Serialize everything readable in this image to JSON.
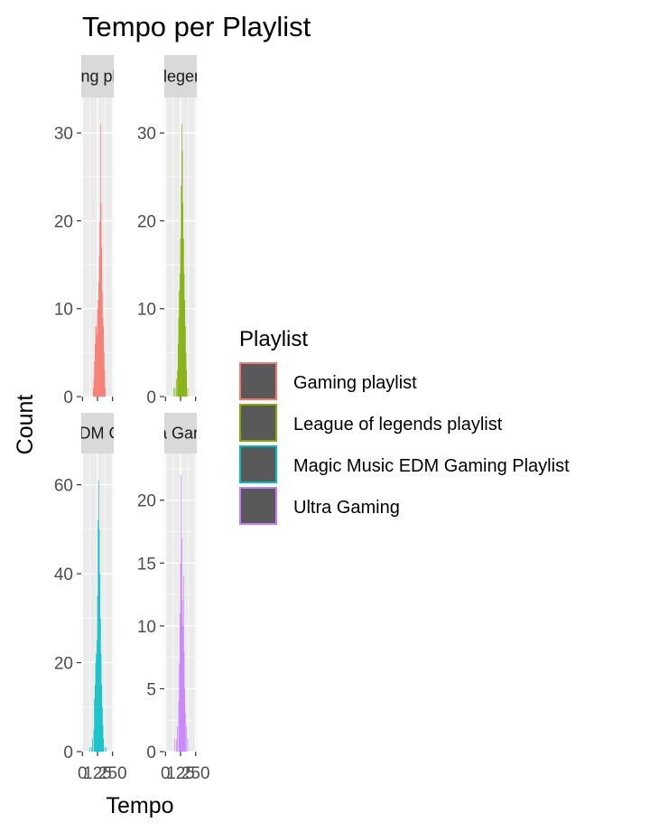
{
  "chart_data": {
    "type": "bar",
    "title": "Tempo per Playlist",
    "xlabel": "Tempo",
    "ylabel": "Count",
    "legend": {
      "title": "Playlist",
      "placement": "right",
      "entries": [
        {
          "label": "Gaming playlist",
          "color": "#F8766D"
        },
        {
          "label": "League of legends playlist",
          "color": "#7CAE00"
        },
        {
          "label": "Magic Music EDM Gaming Playlist",
          "color": "#00BFC4"
        },
        {
          "label": "Ultra Gaming",
          "color": "#C77CFF"
        }
      ]
    },
    "x_ticks": [
      "0",
      "125",
      "250"
    ],
    "xlim": [
      -10,
      260
    ],
    "grid": true,
    "facets": [
      {
        "strip_label": "Gaming playlist",
        "color": "#F8766D",
        "ylim": [
          0,
          33
        ],
        "y_ticks": [
          0,
          10,
          20,
          30
        ],
        "bins": [
          {
            "x": 90,
            "y": 1
          },
          {
            "x": 95,
            "y": 2
          },
          {
            "x": 100,
            "y": 4
          },
          {
            "x": 105,
            "y": 6
          },
          {
            "x": 110,
            "y": 8
          },
          {
            "x": 115,
            "y": 8
          },
          {
            "x": 120,
            "y": 7
          },
          {
            "x": 125,
            "y": 10
          },
          {
            "x": 130,
            "y": 11
          },
          {
            "x": 135,
            "y": 13
          },
          {
            "x": 140,
            "y": 16
          },
          {
            "x": 145,
            "y": 20
          },
          {
            "x": 150,
            "y": 31
          },
          {
            "x": 155,
            "y": 22
          },
          {
            "x": 160,
            "y": 17
          },
          {
            "x": 165,
            "y": 12
          },
          {
            "x": 170,
            "y": 9
          },
          {
            "x": 175,
            "y": 8
          },
          {
            "x": 180,
            "y": 5
          },
          {
            "x": 185,
            "y": 3
          },
          {
            "x": 190,
            "y": 1
          }
        ]
      },
      {
        "strip_label": "League of legends playlist",
        "color": "#7CAE00",
        "ylim": [
          0,
          33
        ],
        "y_ticks": [
          0,
          10,
          20,
          30
        ],
        "bins": [
          {
            "x": 70,
            "y": 1
          },
          {
            "x": 80,
            "y": 1
          },
          {
            "x": 90,
            "y": 2
          },
          {
            "x": 100,
            "y": 3
          },
          {
            "x": 105,
            "y": 6
          },
          {
            "x": 110,
            "y": 9
          },
          {
            "x": 115,
            "y": 12
          },
          {
            "x": 120,
            "y": 14
          },
          {
            "x": 125,
            "y": 18
          },
          {
            "x": 130,
            "y": 24
          },
          {
            "x": 135,
            "y": 31
          },
          {
            "x": 140,
            "y": 28
          },
          {
            "x": 145,
            "y": 22
          },
          {
            "x": 150,
            "y": 18
          },
          {
            "x": 155,
            "y": 14
          },
          {
            "x": 160,
            "y": 11
          },
          {
            "x": 165,
            "y": 8
          },
          {
            "x": 170,
            "y": 5
          },
          {
            "x": 175,
            "y": 3
          },
          {
            "x": 185,
            "y": 1
          }
        ]
      },
      {
        "strip_label": "Magic Music EDM Gaming Playlist",
        "color": "#00BFC4",
        "ylim": [
          0,
          65
        ],
        "y_ticks": [
          0,
          20,
          40,
          60
        ],
        "bins": [
          {
            "x": 60,
            "y": 1
          },
          {
            "x": 75,
            "y": 1
          },
          {
            "x": 85,
            "y": 3
          },
          {
            "x": 95,
            "y": 5
          },
          {
            "x": 100,
            "y": 12
          },
          {
            "x": 105,
            "y": 15
          },
          {
            "x": 110,
            "y": 20
          },
          {
            "x": 115,
            "y": 22
          },
          {
            "x": 120,
            "y": 25
          },
          {
            "x": 125,
            "y": 35
          },
          {
            "x": 130,
            "y": 52
          },
          {
            "x": 135,
            "y": 61
          },
          {
            "x": 140,
            "y": 50
          },
          {
            "x": 145,
            "y": 40
          },
          {
            "x": 150,
            "y": 30
          },
          {
            "x": 155,
            "y": 22
          },
          {
            "x": 160,
            "y": 15
          },
          {
            "x": 165,
            "y": 10
          },
          {
            "x": 170,
            "y": 6
          },
          {
            "x": 175,
            "y": 3
          },
          {
            "x": 185,
            "y": 1
          },
          {
            "x": 195,
            "y": 1
          }
        ]
      },
      {
        "strip_label": "Ultra Gaming",
        "color": "#C77CFF",
        "ylim": [
          0,
          23
        ],
        "y_ticks": [
          0,
          5,
          10,
          15,
          20
        ],
        "bins": [
          {
            "x": 75,
            "y": 1
          },
          {
            "x": 90,
            "y": 1
          },
          {
            "x": 100,
            "y": 2
          },
          {
            "x": 110,
            "y": 4
          },
          {
            "x": 115,
            "y": 7
          },
          {
            "x": 120,
            "y": 11
          },
          {
            "x": 125,
            "y": 15
          },
          {
            "x": 130,
            "y": 22
          },
          {
            "x": 135,
            "y": 17
          },
          {
            "x": 140,
            "y": 12
          },
          {
            "x": 145,
            "y": 10
          },
          {
            "x": 150,
            "y": 14
          },
          {
            "x": 155,
            "y": 8
          },
          {
            "x": 160,
            "y": 5
          },
          {
            "x": 165,
            "y": 3
          },
          {
            "x": 175,
            "y": 2
          },
          {
            "x": 185,
            "y": 1
          }
        ]
      }
    ]
  }
}
